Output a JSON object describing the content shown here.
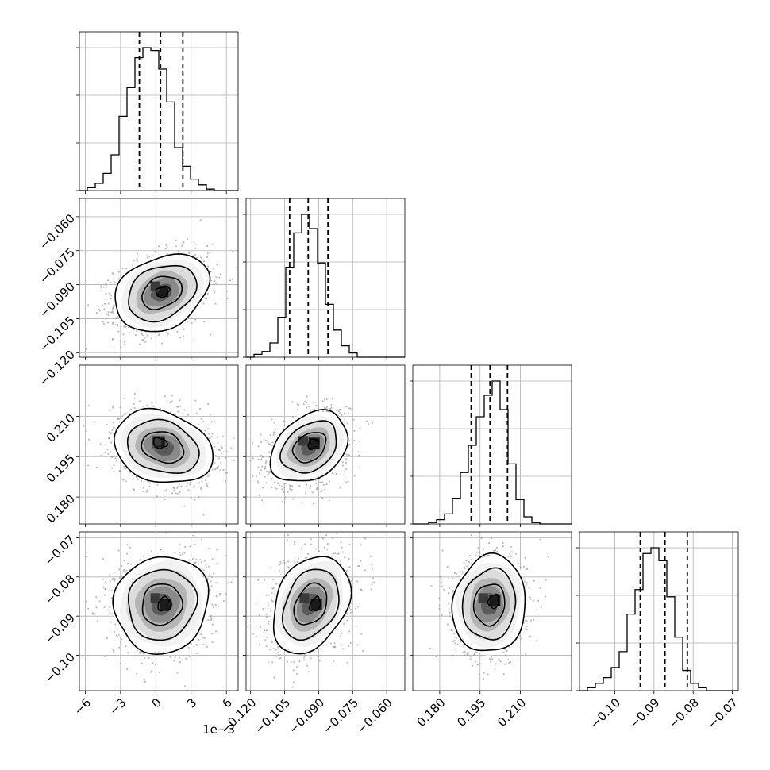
{
  "chart_data": {
    "type": "corner",
    "title": "",
    "grid": true,
    "n_params": 4,
    "axes": [
      {
        "range": [
          -6.5,
          7.0
        ],
        "ticks": [
          -6,
          -3,
          0,
          3,
          6
        ],
        "tick_labels": [
          "−6",
          "−3",
          "0",
          "3",
          "6"
        ],
        "offset_label": "1e−3"
      },
      {
        "range": [
          -0.122,
          -0.052
        ],
        "ticks": [
          -0.12,
          -0.105,
          -0.09,
          -0.075,
          -0.06
        ],
        "tick_labels": [
          "−0.120",
          "−0.105",
          "−0.090",
          "−0.075",
          "−0.060"
        ],
        "offset_label": ""
      },
      {
        "range": [
          0.17,
          0.229
        ],
        "ticks": [
          0.18,
          0.195,
          0.21
        ],
        "tick_labels": [
          "0.180",
          "0.195",
          "0.210"
        ],
        "offset_label": ""
      },
      {
        "range": [
          -0.109,
          -0.0685
        ],
        "ticks": [
          -0.1,
          -0.09,
          -0.08,
          -0.07
        ],
        "tick_labels": [
          "−0.10",
          "−0.09",
          "−0.08",
          "−0.07"
        ],
        "offset_label": ""
      }
    ],
    "histograms": [
      {
        "bin_edges": [
          -6.5,
          6.9
        ],
        "counts": [
          0,
          2,
          5,
          12,
          25,
          52,
          72,
          93,
          100,
          98,
          85,
          62,
          30,
          17,
          8,
          4,
          1,
          0,
          0,
          0
        ],
        "quantiles": [
          -1.4,
          0.4,
          2.3
        ]
      },
      {
        "bin_edges": [
          -0.122,
          -0.052
        ],
        "counts": [
          0,
          2,
          4,
          10,
          28,
          63,
          87,
          100,
          90,
          66,
          37,
          19,
          8,
          3,
          0,
          0,
          0,
          0,
          0,
          0
        ],
        "quantiles": [
          -0.1028,
          -0.0946,
          -0.0859
        ]
      },
      {
        "bin_edges": [
          0.17,
          0.229
        ],
        "counts": [
          0,
          0,
          1,
          3,
          7,
          18,
          36,
          55,
          75,
          90,
          100,
          80,
          42,
          17,
          5,
          1,
          0,
          0,
          0,
          0
        ],
        "quantiles": [
          0.1917,
          0.1987,
          0.2052
        ]
      },
      {
        "bin_edges": [
          -0.109,
          -0.0685
        ],
        "counts": [
          0,
          2,
          5,
          9,
          16,
          27,
          53,
          70,
          95,
          99,
          90,
          65,
          37,
          14,
          5,
          2,
          0,
          0,
          0,
          0
        ],
        "quantiles": [
          -0.0935,
          -0.0872,
          -0.0815
        ]
      }
    ],
    "pairs": [
      {
        "x_index": 0,
        "y_index": 1,
        "center": [
          0.5,
          -0.0935
        ],
        "sigma": [
          2.0,
          0.0085
        ],
        "rho": 0.28,
        "peak": [
          0.6,
          -0.093
        ]
      },
      {
        "x_index": 0,
        "y_index": 2,
        "center": [
          0.6,
          0.1985
        ],
        "sigma": [
          2.1,
          0.0068
        ],
        "rho": -0.22,
        "peak": [
          0.3,
          0.2005
        ]
      },
      {
        "x_index": 1,
        "y_index": 2,
        "center": [
          -0.094,
          0.1985
        ],
        "sigma": [
          0.0085,
          0.0066
        ],
        "rho": 0.32,
        "peak": [
          -0.092,
          0.2
        ]
      },
      {
        "x_index": 0,
        "y_index": 3,
        "center": [
          0.5,
          -0.087
        ],
        "sigma": [
          2.0,
          0.0062
        ],
        "rho": 0.06,
        "peak": [
          0.8,
          -0.087
        ]
      },
      {
        "x_index": 1,
        "y_index": 3,
        "center": [
          -0.0935,
          -0.087
        ],
        "sigma": [
          0.0085,
          0.0062
        ],
        "rho": 0.3,
        "peak": [
          -0.091,
          -0.087
        ]
      },
      {
        "x_index": 2,
        "y_index": 3,
        "center": [
          0.1985,
          -0.087
        ],
        "sigma": [
          0.0068,
          0.0062
        ],
        "rho": 0.08,
        "peak": [
          0.2005,
          -0.086
        ]
      }
    ],
    "colors": {
      "contour": "#000000",
      "points": "#8c8c8c",
      "density_dark": "#000000",
      "grid": "#b0b0b0"
    }
  }
}
